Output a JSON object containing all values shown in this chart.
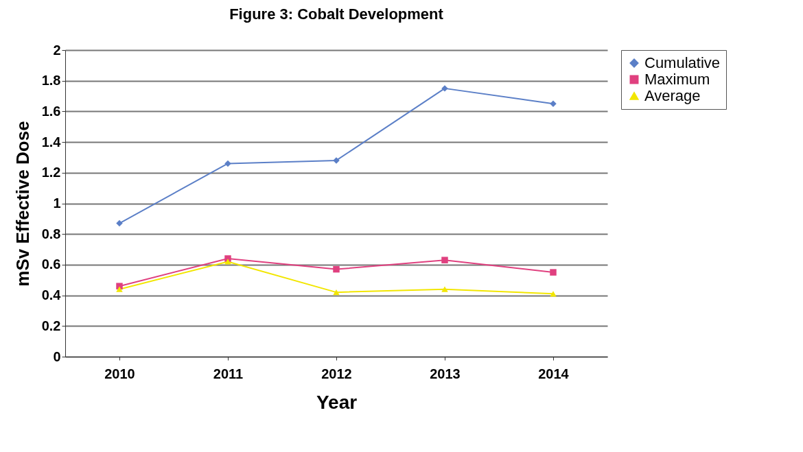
{
  "chart_data": {
    "type": "line",
    "title": "Figure 3:  Cobalt Development",
    "xlabel": "Year",
    "ylabel": "mSv Effective Dose",
    "categories": [
      "2010",
      "2011",
      "2012",
      "2013",
      "2014"
    ],
    "series": [
      {
        "name": "Cumulative",
        "color": "#5b7fc7",
        "marker": "diamond",
        "values": [
          0.87,
          1.26,
          1.28,
          1.75,
          1.65
        ]
      },
      {
        "name": "Maximum",
        "color": "#e0407f",
        "marker": "square",
        "values": [
          0.46,
          0.64,
          0.57,
          0.63,
          0.55
        ]
      },
      {
        "name": "Average",
        "color": "#f2e600",
        "marker": "triangle",
        "values": [
          0.44,
          0.62,
          0.42,
          0.44,
          0.41
        ]
      }
    ],
    "ylim": [
      0,
      2
    ],
    "yticks": [
      0,
      0.2,
      0.4,
      0.6,
      0.8,
      1,
      1.2,
      1.4,
      1.6,
      1.8,
      2
    ],
    "grid": "y",
    "legend": "right"
  }
}
